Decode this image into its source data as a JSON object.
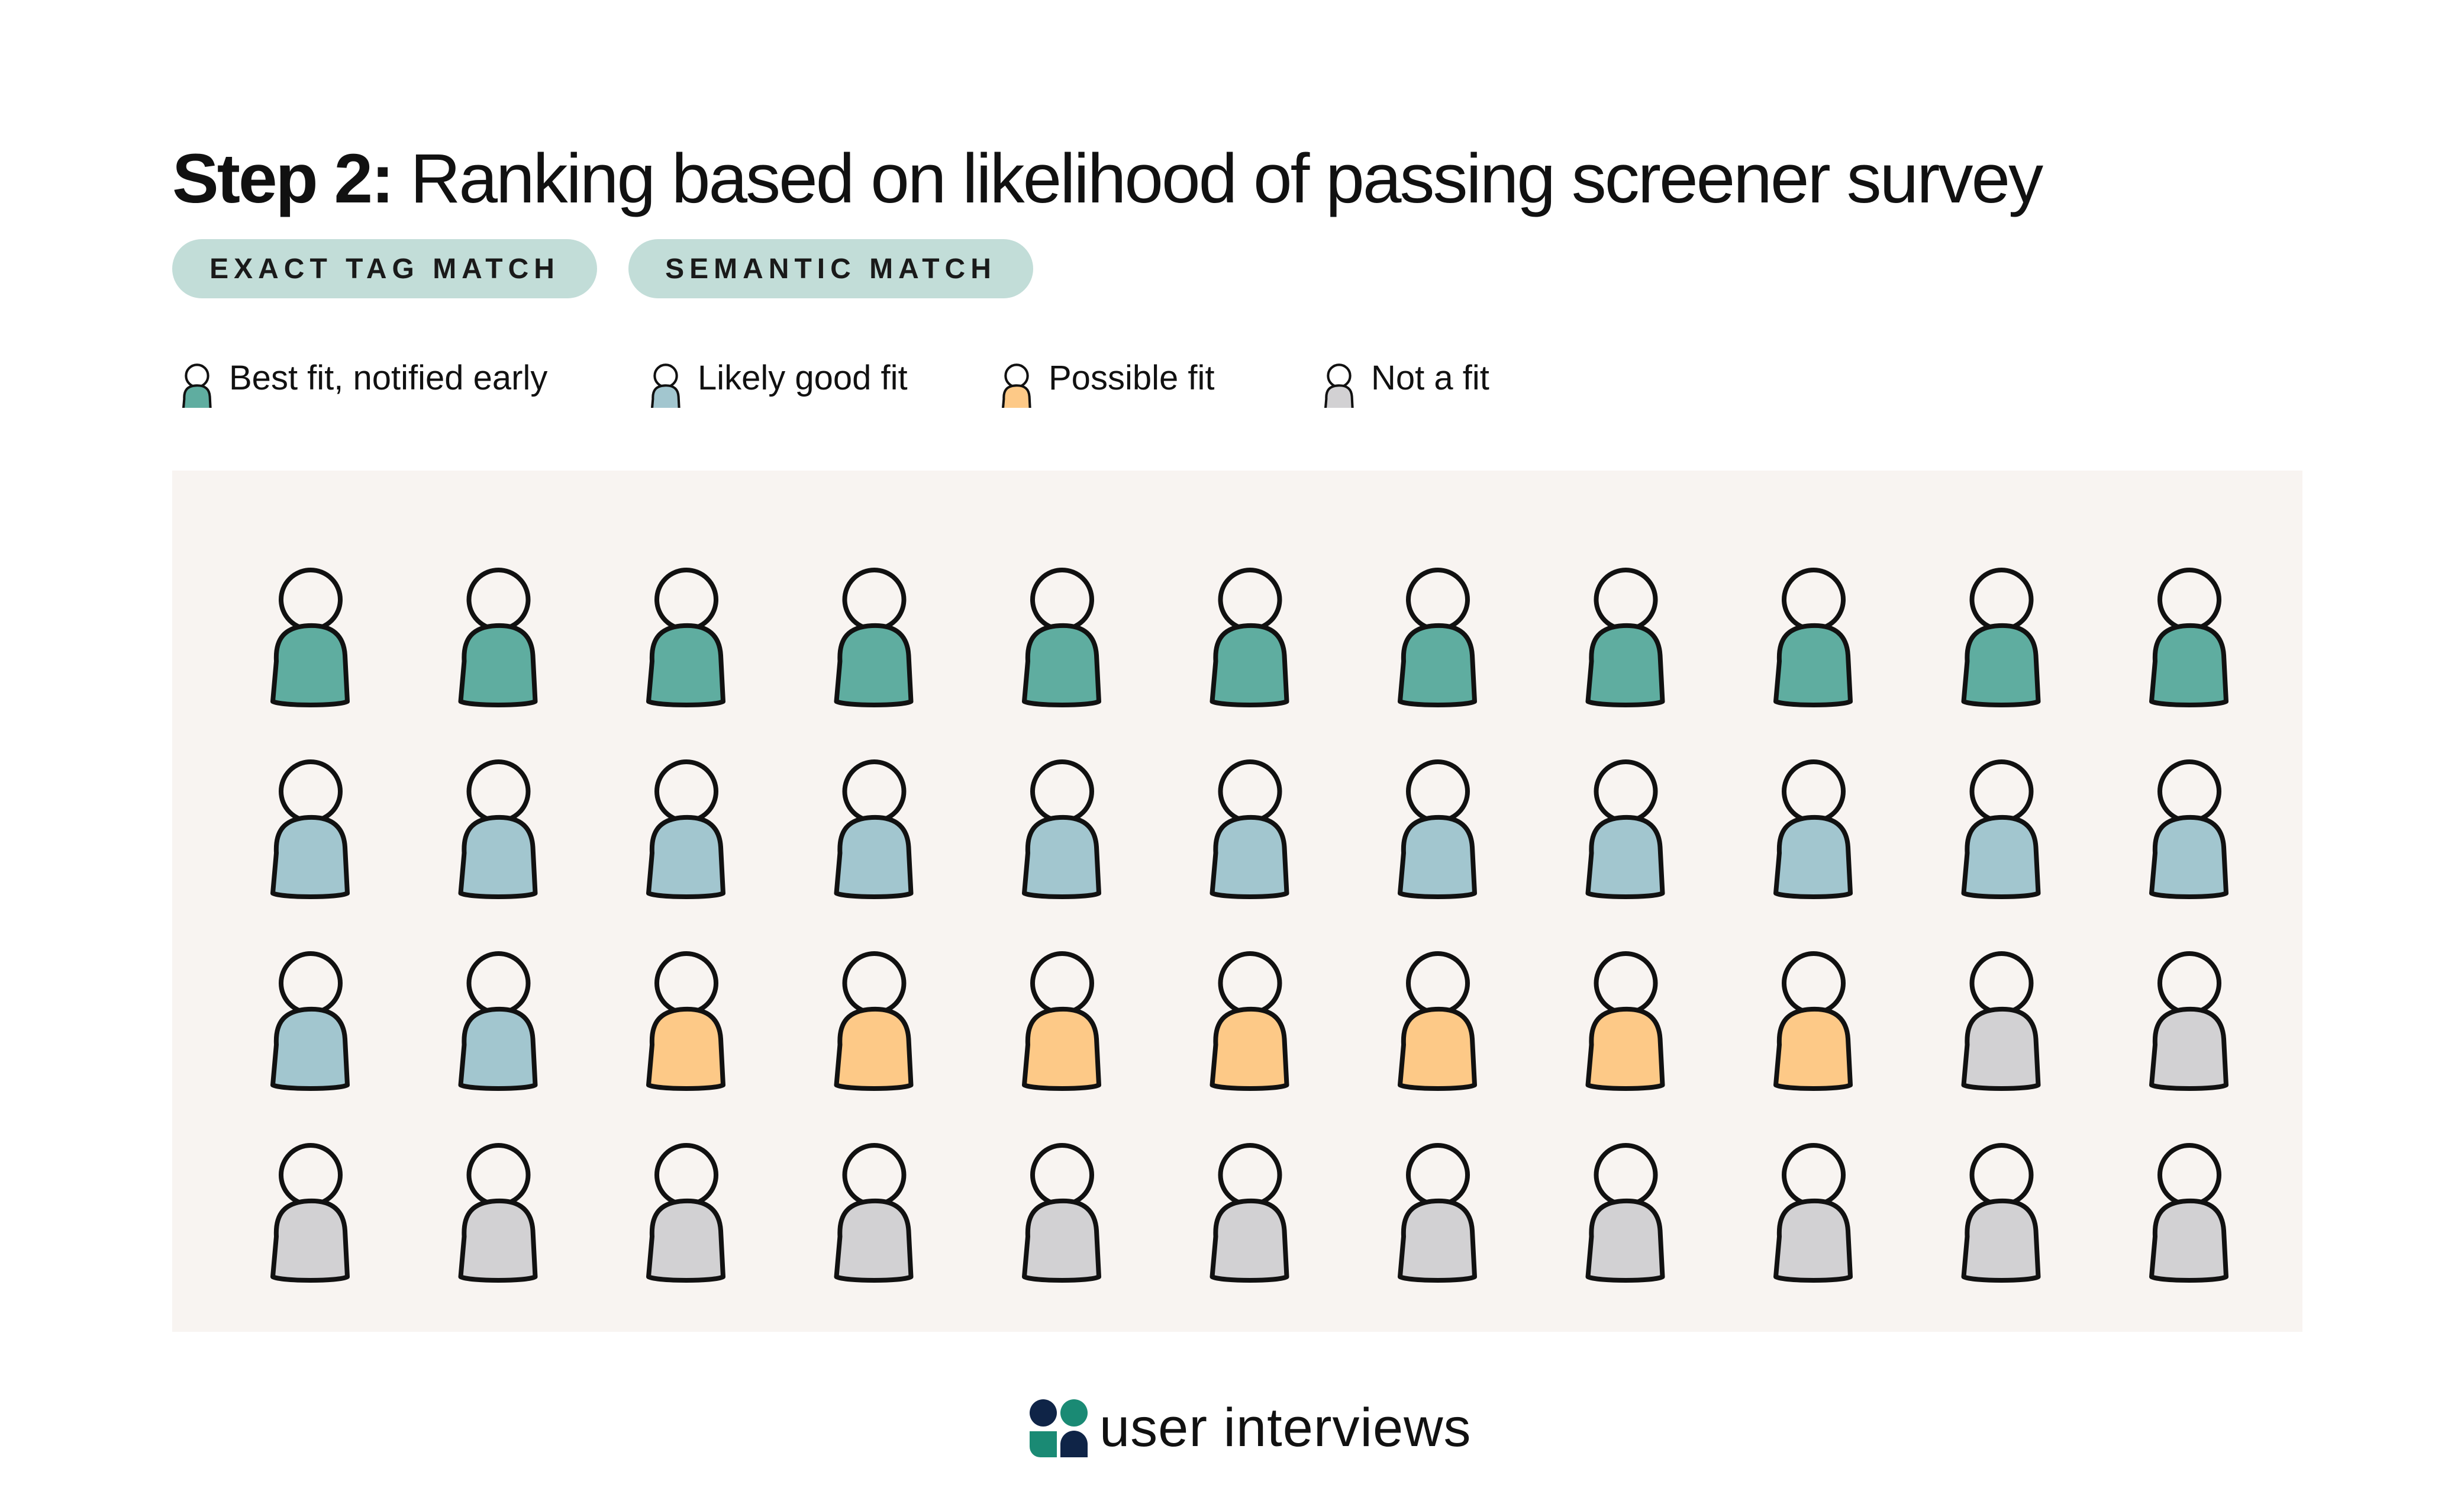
{
  "title": {
    "bold": "Step 2:",
    "rest": " Ranking based on likelihood of passing screener survey"
  },
  "tags": [
    "EXACT TAG MATCH",
    "SEMANTIC MATCH"
  ],
  "legend": [
    {
      "label": "Best fit, notified early",
      "color": "#5fada0",
      "icon": "person-icon"
    },
    {
      "label": "Likely good fit",
      "color": "#a2c6cf",
      "icon": "person-icon"
    },
    {
      "label": "Possible fit",
      "color": "#fdc987",
      "icon": "person-icon"
    },
    {
      "label": "Not a fit",
      "color": "#d2d1d3",
      "icon": "person-icon"
    }
  ],
  "grid": {
    "rows": [
      [
        "best",
        "best",
        "best",
        "best",
        "best",
        "best",
        "best",
        "best",
        "best",
        "best",
        "best"
      ],
      [
        "likely",
        "likely",
        "likely",
        "likely",
        "likely",
        "likely",
        "likely",
        "likely",
        "likely",
        "likely",
        "likely"
      ],
      [
        "likely",
        "likely",
        "possible",
        "possible",
        "possible",
        "possible",
        "possible",
        "possible",
        "possible",
        "not",
        "not"
      ],
      [
        "not",
        "not",
        "not",
        "not",
        "not",
        "not",
        "not",
        "not",
        "not",
        "not",
        "not"
      ]
    ],
    "colors": {
      "best": "#5fada0",
      "likely": "#a2c6cf",
      "possible": "#fdc987",
      "not": "#d2d1d3"
    },
    "head_fill": "#f8f4f1",
    "outline": "#111111"
  },
  "brand": {
    "name": "user interviews",
    "colors": [
      "#0f2447",
      "#1a8a74"
    ]
  }
}
